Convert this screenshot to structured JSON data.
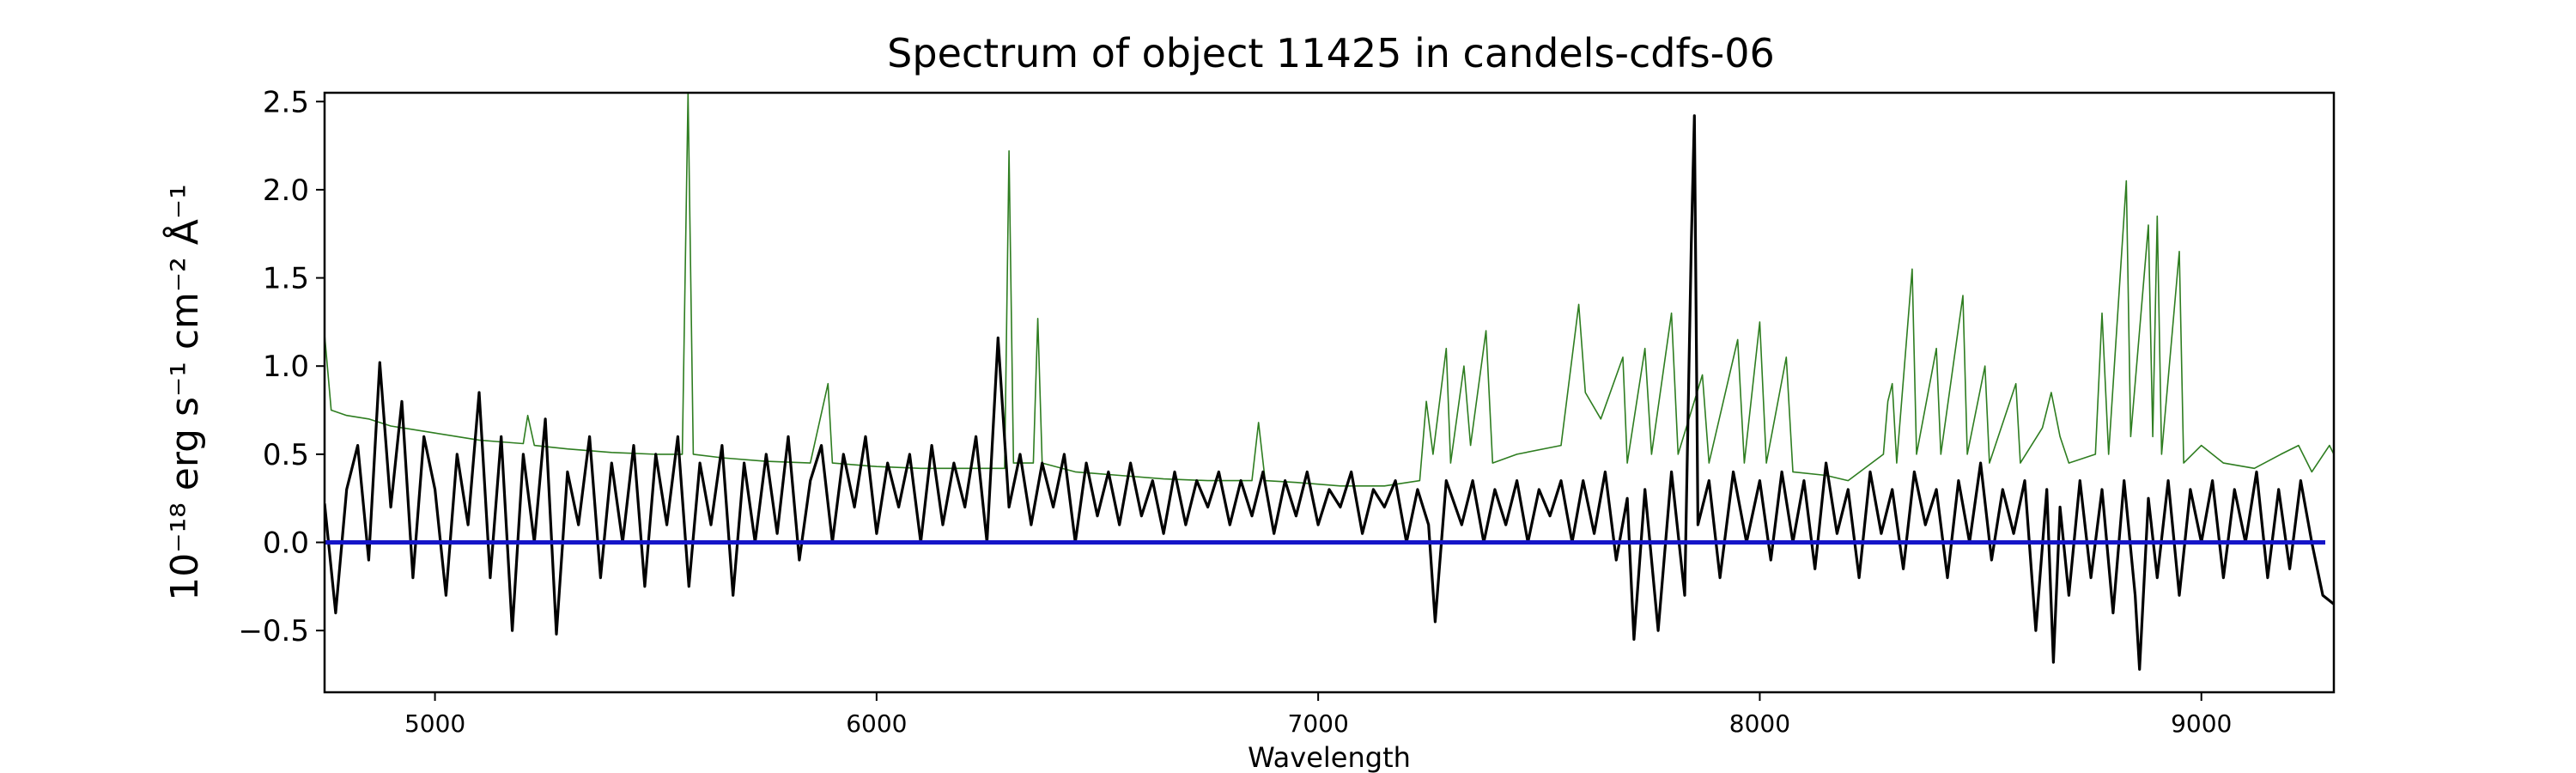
{
  "chart_data": {
    "type": "line",
    "title": "Spectrum of object 11425 in candels-cdfs-06",
    "xlabel": "Wavelength",
    "ylabel": "10⁻¹⁸ erg s⁻¹ cm⁻² Å⁻¹",
    "xlim": [
      4750,
      9300
    ],
    "ylim": [
      -0.85,
      2.55
    ],
    "xticks": [
      5000,
      6000,
      7000,
      8000,
      9000
    ],
    "yticks": [
      -0.5,
      0.0,
      0.5,
      1.0,
      1.5,
      2.0,
      2.5
    ],
    "grid": false,
    "colors": {
      "flux": "#000000",
      "error": "#2e7d20",
      "zero": "#1515c8"
    },
    "series": [
      {
        "role": "flux",
        "points": [
          [
            4750,
            0.22
          ],
          [
            4775,
            -0.4
          ],
          [
            4800,
            0.3
          ],
          [
            4825,
            0.55
          ],
          [
            4850,
            -0.1
          ],
          [
            4875,
            1.02
          ],
          [
            4900,
            0.2
          ],
          [
            4925,
            0.8
          ],
          [
            4950,
            -0.2
          ],
          [
            4975,
            0.6
          ],
          [
            5000,
            0.3
          ],
          [
            5025,
            -0.3
          ],
          [
            5050,
            0.5
          ],
          [
            5075,
            0.1
          ],
          [
            5100,
            0.85
          ],
          [
            5125,
            -0.2
          ],
          [
            5150,
            0.6
          ],
          [
            5175,
            -0.5
          ],
          [
            5200,
            0.5
          ],
          [
            5225,
            0.0
          ],
          [
            5250,
            0.7
          ],
          [
            5275,
            -0.52
          ],
          [
            5300,
            0.4
          ],
          [
            5325,
            0.1
          ],
          [
            5350,
            0.6
          ],
          [
            5375,
            -0.2
          ],
          [
            5400,
            0.45
          ],
          [
            5425,
            0.0
          ],
          [
            5450,
            0.55
          ],
          [
            5475,
            -0.25
          ],
          [
            5500,
            0.5
          ],
          [
            5525,
            0.1
          ],
          [
            5550,
            0.6
          ],
          [
            5575,
            -0.25
          ],
          [
            5600,
            0.45
          ],
          [
            5625,
            0.1
          ],
          [
            5650,
            0.55
          ],
          [
            5675,
            -0.3
          ],
          [
            5700,
            0.45
          ],
          [
            5725,
            0.0
          ],
          [
            5750,
            0.5
          ],
          [
            5775,
            0.05
          ],
          [
            5800,
            0.6
          ],
          [
            5825,
            -0.1
          ],
          [
            5850,
            0.35
          ],
          [
            5875,
            0.55
          ],
          [
            5900,
            0.0
          ],
          [
            5925,
            0.5
          ],
          [
            5950,
            0.2
          ],
          [
            5975,
            0.6
          ],
          [
            6000,
            0.05
          ],
          [
            6025,
            0.45
          ],
          [
            6050,
            0.2
          ],
          [
            6075,
            0.5
          ],
          [
            6100,
            0.0
          ],
          [
            6125,
            0.55
          ],
          [
            6150,
            0.1
          ],
          [
            6175,
            0.45
          ],
          [
            6200,
            0.2
          ],
          [
            6225,
            0.6
          ],
          [
            6250,
            0.0
          ],
          [
            6275,
            1.16
          ],
          [
            6300,
            0.2
          ],
          [
            6325,
            0.5
          ],
          [
            6350,
            0.1
          ],
          [
            6375,
            0.45
          ],
          [
            6400,
            0.2
          ],
          [
            6425,
            0.5
          ],
          [
            6450,
            0.0
          ],
          [
            6475,
            0.45
          ],
          [
            6500,
            0.15
          ],
          [
            6525,
            0.4
          ],
          [
            6550,
            0.1
          ],
          [
            6575,
            0.45
          ],
          [
            6600,
            0.15
          ],
          [
            6625,
            0.35
          ],
          [
            6650,
            0.05
          ],
          [
            6675,
            0.4
          ],
          [
            6700,
            0.1
          ],
          [
            6725,
            0.35
          ],
          [
            6750,
            0.2
          ],
          [
            6775,
            0.4
          ],
          [
            6800,
            0.1
          ],
          [
            6825,
            0.35
          ],
          [
            6850,
            0.15
          ],
          [
            6875,
            0.4
          ],
          [
            6900,
            0.05
          ],
          [
            6925,
            0.35
          ],
          [
            6950,
            0.15
          ],
          [
            6975,
            0.4
          ],
          [
            7000,
            0.1
          ],
          [
            7025,
            0.3
          ],
          [
            7050,
            0.2
          ],
          [
            7075,
            0.4
          ],
          [
            7100,
            0.05
          ],
          [
            7125,
            0.3
          ],
          [
            7150,
            0.2
          ],
          [
            7175,
            0.35
          ],
          [
            7200,
            0.0
          ],
          [
            7225,
            0.3
          ],
          [
            7250,
            0.1
          ],
          [
            7265,
            -0.45
          ],
          [
            7290,
            0.35
          ],
          [
            7325,
            0.1
          ],
          [
            7350,
            0.35
          ],
          [
            7375,
            0.0
          ],
          [
            7400,
            0.3
          ],
          [
            7425,
            0.1
          ],
          [
            7450,
            0.35
          ],
          [
            7475,
            0.0
          ],
          [
            7500,
            0.3
          ],
          [
            7525,
            0.15
          ],
          [
            7550,
            0.35
          ],
          [
            7575,
            0.0
          ],
          [
            7600,
            0.35
          ],
          [
            7625,
            0.05
          ],
          [
            7650,
            0.4
          ],
          [
            7675,
            -0.1
          ],
          [
            7700,
            0.25
          ],
          [
            7715,
            -0.55
          ],
          [
            7740,
            0.3
          ],
          [
            7770,
            -0.5
          ],
          [
            7800,
            0.4
          ],
          [
            7830,
            -0.3
          ],
          [
            7845,
            1.7
          ],
          [
            7852,
            2.42
          ],
          [
            7860,
            0.1
          ],
          [
            7885,
            0.35
          ],
          [
            7910,
            -0.2
          ],
          [
            7940,
            0.4
          ],
          [
            7970,
            0.0
          ],
          [
            8000,
            0.35
          ],
          [
            8025,
            -0.1
          ],
          [
            8050,
            0.4
          ],
          [
            8075,
            0.0
          ],
          [
            8100,
            0.35
          ],
          [
            8125,
            -0.15
          ],
          [
            8150,
            0.45
          ],
          [
            8175,
            0.05
          ],
          [
            8200,
            0.3
          ],
          [
            8225,
            -0.2
          ],
          [
            8250,
            0.4
          ],
          [
            8275,
            0.05
          ],
          [
            8300,
            0.3
          ],
          [
            8325,
            -0.15
          ],
          [
            8350,
            0.4
          ],
          [
            8375,
            0.1
          ],
          [
            8400,
            0.3
          ],
          [
            8425,
            -0.2
          ],
          [
            8450,
            0.35
          ],
          [
            8475,
            0.0
          ],
          [
            8500,
            0.45
          ],
          [
            8525,
            -0.1
          ],
          [
            8550,
            0.3
          ],
          [
            8575,
            0.05
          ],
          [
            8600,
            0.35
          ],
          [
            8625,
            -0.5
          ],
          [
            8650,
            0.3
          ],
          [
            8665,
            -0.68
          ],
          [
            8680,
            0.2
          ],
          [
            8700,
            -0.3
          ],
          [
            8725,
            0.35
          ],
          [
            8750,
            -0.2
          ],
          [
            8775,
            0.3
          ],
          [
            8800,
            -0.4
          ],
          [
            8825,
            0.35
          ],
          [
            8850,
            -0.3
          ],
          [
            8860,
            -0.72
          ],
          [
            8880,
            0.25
          ],
          [
            8900,
            -0.2
          ],
          [
            8925,
            0.35
          ],
          [
            8950,
            -0.3
          ],
          [
            8975,
            0.3
          ],
          [
            9000,
            0.0
          ],
          [
            9025,
            0.35
          ],
          [
            9050,
            -0.2
          ],
          [
            9075,
            0.3
          ],
          [
            9100,
            0.0
          ],
          [
            9125,
            0.4
          ],
          [
            9150,
            -0.2
          ],
          [
            9175,
            0.3
          ],
          [
            9200,
            -0.15
          ],
          [
            9225,
            0.35
          ],
          [
            9250,
            0.0
          ],
          [
            9275,
            -0.3
          ],
          [
            9300,
            -0.35
          ]
        ]
      },
      {
        "role": "error",
        "points": [
          [
            4750,
            1.18
          ],
          [
            4765,
            0.75
          ],
          [
            4800,
            0.72
          ],
          [
            4850,
            0.7
          ],
          [
            4900,
            0.66
          ],
          [
            4950,
            0.64
          ],
          [
            5000,
            0.62
          ],
          [
            5050,
            0.6
          ],
          [
            5100,
            0.58
          ],
          [
            5150,
            0.57
          ],
          [
            5200,
            0.56
          ],
          [
            5210,
            0.72
          ],
          [
            5225,
            0.55
          ],
          [
            5300,
            0.53
          ],
          [
            5400,
            0.51
          ],
          [
            5500,
            0.5
          ],
          [
            5560,
            0.5
          ],
          [
            5573,
            2.55
          ],
          [
            5585,
            0.5
          ],
          [
            5650,
            0.48
          ],
          [
            5750,
            0.46
          ],
          [
            5850,
            0.45
          ],
          [
            5890,
            0.9
          ],
          [
            5900,
            0.45
          ],
          [
            6000,
            0.43
          ],
          [
            6100,
            0.42
          ],
          [
            6200,
            0.42
          ],
          [
            6290,
            0.42
          ],
          [
            6300,
            2.22
          ],
          [
            6310,
            0.45
          ],
          [
            6355,
            0.45
          ],
          [
            6365,
            1.27
          ],
          [
            6375,
            0.45
          ],
          [
            6450,
            0.4
          ],
          [
            6550,
            0.38
          ],
          [
            6650,
            0.36
          ],
          [
            6750,
            0.35
          ],
          [
            6850,
            0.35
          ],
          [
            6865,
            0.68
          ],
          [
            6880,
            0.35
          ],
          [
            6950,
            0.34
          ],
          [
            7050,
            0.32
          ],
          [
            7150,
            0.32
          ],
          [
            7230,
            0.35
          ],
          [
            7245,
            0.8
          ],
          [
            7260,
            0.5
          ],
          [
            7290,
            1.1
          ],
          [
            7300,
            0.45
          ],
          [
            7330,
            1.0
          ],
          [
            7345,
            0.55
          ],
          [
            7380,
            1.2
          ],
          [
            7395,
            0.45
          ],
          [
            7450,
            0.5
          ],
          [
            7550,
            0.55
          ],
          [
            7590,
            1.35
          ],
          [
            7605,
            0.85
          ],
          [
            7640,
            0.7
          ],
          [
            7690,
            1.05
          ],
          [
            7700,
            0.45
          ],
          [
            7740,
            1.1
          ],
          [
            7755,
            0.5
          ],
          [
            7800,
            1.3
          ],
          [
            7815,
            0.5
          ],
          [
            7870,
            0.95
          ],
          [
            7885,
            0.45
          ],
          [
            7950,
            1.15
          ],
          [
            7965,
            0.45
          ],
          [
            8000,
            1.25
          ],
          [
            8015,
            0.45
          ],
          [
            8060,
            1.05
          ],
          [
            8075,
            0.4
          ],
          [
            8150,
            0.38
          ],
          [
            8200,
            0.35
          ],
          [
            8280,
            0.5
          ],
          [
            8290,
            0.8
          ],
          [
            8300,
            0.9
          ],
          [
            8310,
            0.45
          ],
          [
            8345,
            1.55
          ],
          [
            8355,
            0.5
          ],
          [
            8400,
            1.1
          ],
          [
            8410,
            0.5
          ],
          [
            8460,
            1.4
          ],
          [
            8470,
            0.5
          ],
          [
            8510,
            1.0
          ],
          [
            8520,
            0.45
          ],
          [
            8580,
            0.9
          ],
          [
            8590,
            0.45
          ],
          [
            8640,
            0.65
          ],
          [
            8660,
            0.85
          ],
          [
            8680,
            0.6
          ],
          [
            8700,
            0.45
          ],
          [
            8760,
            0.5
          ],
          [
            8775,
            1.3
          ],
          [
            8790,
            0.5
          ],
          [
            8830,
            2.05
          ],
          [
            8840,
            0.6
          ],
          [
            8880,
            1.8
          ],
          [
            8890,
            0.6
          ],
          [
            8900,
            1.85
          ],
          [
            8910,
            0.5
          ],
          [
            8950,
            1.65
          ],
          [
            8960,
            0.45
          ],
          [
            9000,
            0.55
          ],
          [
            9050,
            0.45
          ],
          [
            9120,
            0.42
          ],
          [
            9180,
            0.5
          ],
          [
            9220,
            0.55
          ],
          [
            9250,
            0.4
          ],
          [
            9290,
            0.55
          ],
          [
            9300,
            0.5
          ]
        ]
      }
    ]
  }
}
